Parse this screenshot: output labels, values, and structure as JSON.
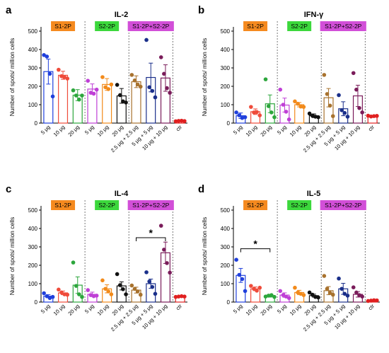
{
  "colors": {
    "badge_s1": "#f58a1f",
    "badge_s2": "#3cd83c",
    "badge_combo": "#d24fd8",
    "group_palette": [
      "#1f3fdc",
      "#ef4b3a",
      "#2ca63c",
      "#bf3fd6",
      "#f28a1a",
      "#111111",
      "#a8722e",
      "#1a2f8a",
      "#7a1c5a",
      "#e02020"
    ]
  },
  "icons": [
    "dot-marker",
    "error-bar",
    "dashed-group-separator",
    "significance-bracket"
  ],
  "chart_data": [
    {
      "type": "bar",
      "panel_label": "a",
      "title": "IL-2",
      "ylabel": "Number of spots/ million cells",
      "ylim": [
        0,
        500
      ],
      "yticks": [
        0,
        100,
        200,
        300,
        400,
        500
      ],
      "categories": [
        "5 μg",
        "10 μg",
        "20 μg",
        "5 μg",
        "10 μg",
        "20 μg",
        "2.5 μg + 2.5 μg",
        "5 μg + 5 μg",
        "10 μg + 10 μg",
        "ctr"
      ],
      "values": [
        280,
        260,
        152,
        185,
        210,
        148,
        225,
        248,
        245,
        12
      ],
      "errors": [
        68,
        22,
        30,
        28,
        32,
        40,
        32,
        78,
        72,
        3
      ],
      "points": [
        [
          370,
          362,
          268,
          145
        ],
        [
          290,
          255,
          250,
          242
        ],
        [
          178,
          150,
          128,
          150
        ],
        [
          230,
          165,
          160,
          182
        ],
        [
          250,
          195,
          185,
          210
        ],
        [
          208,
          152,
          118,
          112
        ],
        [
          262,
          232,
          210,
          198
        ],
        [
          452,
          195,
          175,
          140
        ],
        [
          358,
          268,
          190,
          165
        ],
        [
          10,
          12,
          13,
          11
        ]
      ],
      "group_badges": [
        "S1-2P",
        "S2-2P",
        "S1-2P+S2-2P"
      ],
      "significance": []
    },
    {
      "type": "bar",
      "panel_label": "b",
      "title": "IFN-γ",
      "ylabel": "Number of spots/ million cells",
      "ylim": [
        0,
        500
      ],
      "yticks": [
        0,
        100,
        200,
        300,
        400,
        500
      ],
      "categories": [
        "5 μg",
        "10 μg",
        "20 μg",
        "5 μg",
        "10 μg",
        "20 μg",
        "2.5 μg + 2.5 μg",
        "5 μg + 5 μg",
        "10 μg + 10 μg",
        "ctr"
      ],
      "values": [
        40,
        62,
        105,
        98,
        100,
        40,
        138,
        78,
        148,
        38
      ],
      "errors": [
        15,
        15,
        48,
        38,
        12,
        10,
        50,
        38,
        58,
        4
      ],
      "points": [
        [
          58,
          42,
          28,
          32
        ],
        [
          88,
          58,
          60,
          42
        ],
        [
          238,
          92,
          58,
          32
        ],
        [
          182,
          100,
          62,
          20
        ],
        [
          118,
          105,
          90,
          88
        ],
        [
          52,
          40,
          35,
          32
        ],
        [
          262,
          158,
          95,
          38
        ],
        [
          152,
          70,
          55,
          35
        ],
        [
          272,
          182,
          82,
          58
        ],
        [
          40,
          36,
          38,
          39
        ]
      ],
      "group_badges": [
        "S1-2P",
        "S2-2P",
        "S1-2P+S2-2P"
      ],
      "significance": []
    },
    {
      "type": "bar",
      "panel_label": "c",
      "title": "IL-4",
      "ylabel": "Number of spots/ million cells",
      "ylim": [
        0,
        500
      ],
      "yticks": [
        0,
        100,
        200,
        300,
        400,
        500
      ],
      "categories": [
        "5 μg",
        "10 μg",
        "20 μg",
        "5 μg",
        "10 μg",
        "20 μg",
        "2.5 μg + 2.5 μg",
        "5 μg + 5 μg",
        "10 μg + 10 μg",
        "ctr"
      ],
      "values": [
        32,
        50,
        92,
        42,
        72,
        88,
        65,
        100,
        268,
        30
      ],
      "errors": [
        8,
        10,
        45,
        12,
        22,
        22,
        16,
        25,
        58,
        3
      ],
      "points": [
        [
          48,
          32,
          22,
          28
        ],
        [
          68,
          52,
          42,
          40
        ],
        [
          215,
          88,
          42,
          28
        ],
        [
          65,
          38,
          32,
          35
        ],
        [
          118,
          72,
          58,
          42
        ],
        [
          152,
          92,
          70,
          42
        ],
        [
          90,
          72,
          58,
          40
        ],
        [
          162,
          112,
          82,
          45
        ],
        [
          415,
          285,
          212,
          160
        ],
        [
          28,
          30,
          32,
          30
        ]
      ],
      "group_badges": [
        "S1-2P",
        "S2-2P",
        "S1-2P+S2-2P"
      ],
      "significance": [
        {
          "from": 6,
          "to": 8,
          "label": "*"
        }
      ]
    },
    {
      "type": "bar",
      "panel_label": "d",
      "title": "IL-5",
      "ylabel": "Number of spots/ million cells",
      "ylim": [
        0,
        500
      ],
      "yticks": [
        0,
        100,
        200,
        300,
        400,
        500
      ],
      "categories": [
        "5 μg",
        "10 μg",
        "20 μg",
        "5 μg",
        "10 μg",
        "20 μg",
        "2.5 μg + 2.5 μg",
        "5 μg + 5 μg",
        "10 μg + 10 μg",
        "ctr"
      ],
      "values": [
        145,
        72,
        32,
        38,
        52,
        35,
        62,
        72,
        42,
        8
      ],
      "errors": [
        38,
        10,
        5,
        12,
        12,
        8,
        22,
        30,
        15,
        2
      ],
      "points": [
        [
          230,
          148,
          125,
          60
        ],
        [
          88,
          72,
          62,
          78
        ],
        [
          30,
          35,
          38,
          28
        ],
        [
          60,
          38,
          30,
          22
        ],
        [
          78,
          52,
          45,
          38
        ],
        [
          52,
          40,
          28,
          25
        ],
        [
          142,
          72,
          50,
          40
        ],
        [
          128,
          72,
          45,
          35
        ],
        [
          80,
          52,
          38,
          30
        ],
        [
          6,
          8,
          10,
          9
        ]
      ],
      "group_badges": [
        "S1-2P",
        "S2-2P",
        "S1-2P+S2-2P"
      ],
      "significance": [
        {
          "from": 0,
          "to": 2,
          "label": "*"
        }
      ]
    }
  ]
}
